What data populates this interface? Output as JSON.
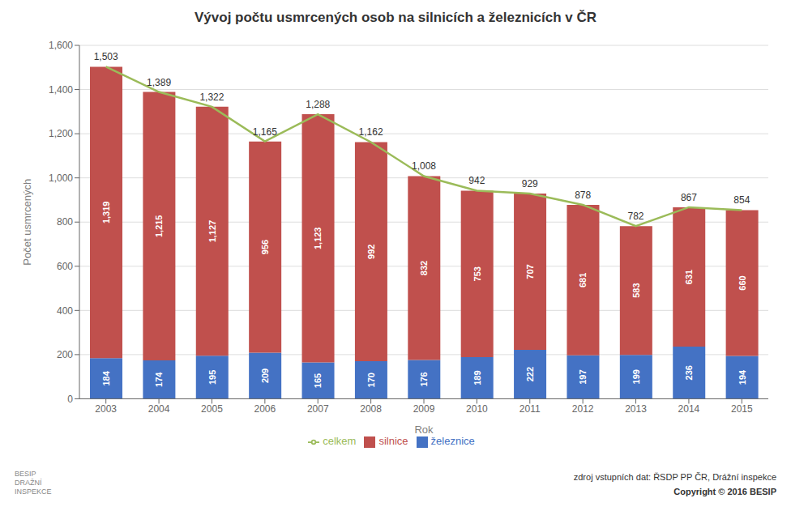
{
  "chart_data": {
    "type": "bar",
    "title": "Vývoj počtu usmrcených osob na silnicích a železnicích v ČR",
    "xlabel": "Rok",
    "ylabel": "Počet usmrcených",
    "categories": [
      "2003",
      "2004",
      "2005",
      "2006",
      "2007",
      "2008",
      "2009",
      "2010",
      "2011",
      "2012",
      "2013",
      "2014",
      "2015"
    ],
    "series": [
      {
        "name": "železnice",
        "type": "bar",
        "color": "#4472C4",
        "values": [
          184,
          174,
          195,
          209,
          165,
          170,
          176,
          189,
          222,
          197,
          199,
          236,
          194
        ]
      },
      {
        "name": "silnice",
        "type": "bar",
        "color": "#C0504D",
        "values": [
          1319,
          1215,
          1127,
          956,
          1123,
          992,
          832,
          753,
          707,
          681,
          583,
          631,
          660
        ],
        "value_labels": [
          "1,319",
          "1,215",
          "1,127",
          "956",
          "1,123",
          "992",
          "832",
          "753",
          "707",
          "681",
          "583",
          "631",
          "660"
        ]
      },
      {
        "name": "celkem",
        "type": "line",
        "color": "#9BBB59",
        "values": [
          1503,
          1389,
          1322,
          1165,
          1288,
          1162,
          1008,
          942,
          929,
          878,
          782,
          867,
          854
        ],
        "value_labels": [
          "1,503",
          "1,389",
          "1,322",
          "1,165",
          "1,288",
          "1,162",
          "1,008",
          "942",
          "929",
          "878",
          "782",
          "867",
          "854"
        ]
      }
    ],
    "stacked": true,
    "data_labels": true,
    "ylim": [
      0,
      1600
    ],
    "yticks": [
      0,
      200,
      400,
      600,
      800,
      {
        "value": 1000,
        "label": "1,000"
      },
      {
        "value": 1200,
        "label": "1,200"
      },
      {
        "value": 1400,
        "label": "1,400"
      },
      {
        "value": 1600,
        "label": "1,600"
      }
    ],
    "grid": true,
    "legend": "bottom",
    "annotations": [
      "zdroj vstupních dat: ŘSDP PP ČR, Drážní inspekce",
      "Copyright © 2016 BESIP",
      "BESIP\nDRAŽNÍ\nINSPEKCE"
    ]
  }
}
